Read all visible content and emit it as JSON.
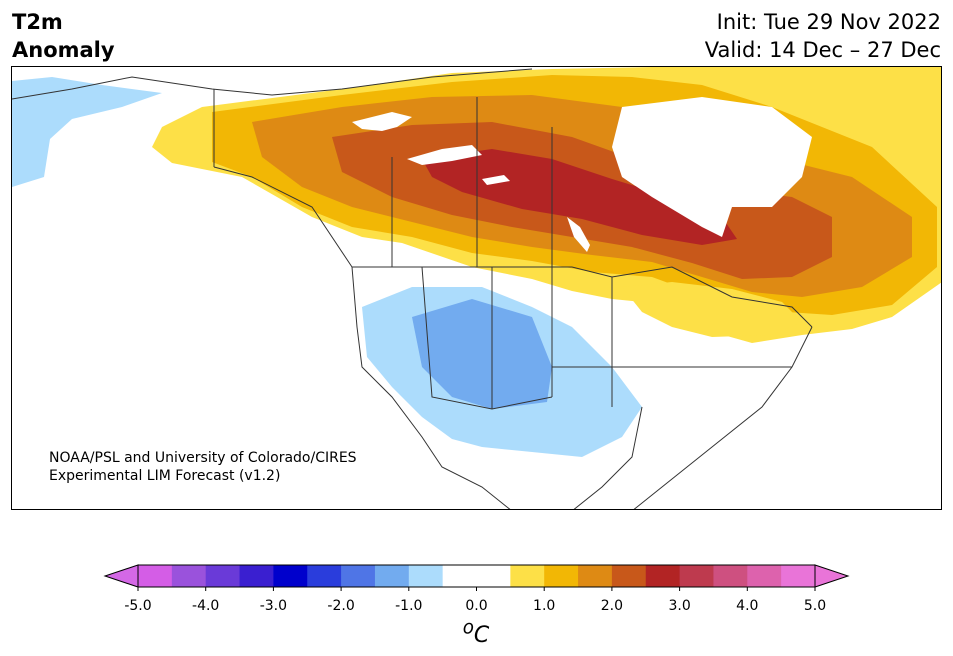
{
  "header": {
    "title_line1": "T2m",
    "title_line2": "Anomaly",
    "init": "Init: Tue 29 Nov 2022",
    "valid": "Valid: 14 Dec – 27 Dec"
  },
  "credit": {
    "line1": "NOAA/PSL and University of Colorado/CIRES",
    "line2": "Experimental LIM Forecast (v1.2)"
  },
  "colorbar": {
    "units_base": "C",
    "units_sup": "o",
    "ticks": [
      "-5.0",
      "-4.0",
      "-3.0",
      "-2.0",
      "-1.0",
      "0.0",
      "1.0",
      "2.0",
      "3.0",
      "4.0",
      "5.0"
    ],
    "colors": [
      "#d45de6",
      "#9a52dc",
      "#6a3ad8",
      "#3a1fd0",
      "#0000cc",
      "#2a3ddc",
      "#4f75e6",
      "#72abef",
      "#acdcfc",
      "#ffffff",
      "#ffffff",
      "#fde047",
      "#f2b705",
      "#de8a14",
      "#c8581a",
      "#b22424",
      "#be3a4e",
      "#ce5080",
      "#dd62ad",
      "#e974d8"
    ],
    "min_color": "#d468e6",
    "max_color": "#e974d8"
  },
  "map": {
    "region": "North America",
    "variable": "2m temperature anomaly",
    "features": [
      {
        "name": "max-warm-anomaly",
        "location": "central Canada (Manitoba/Ontario)",
        "value_range": "2.5 to 3.0"
      },
      {
        "name": "cold-anomaly-core",
        "location": "US southwest / Colorado-Utah",
        "value_range": "-1.5 to -1.0"
      },
      {
        "name": "cold-anomaly-alaska",
        "location": "western Alaska",
        "value_range": "-1.0 to -0.5"
      }
    ]
  }
}
